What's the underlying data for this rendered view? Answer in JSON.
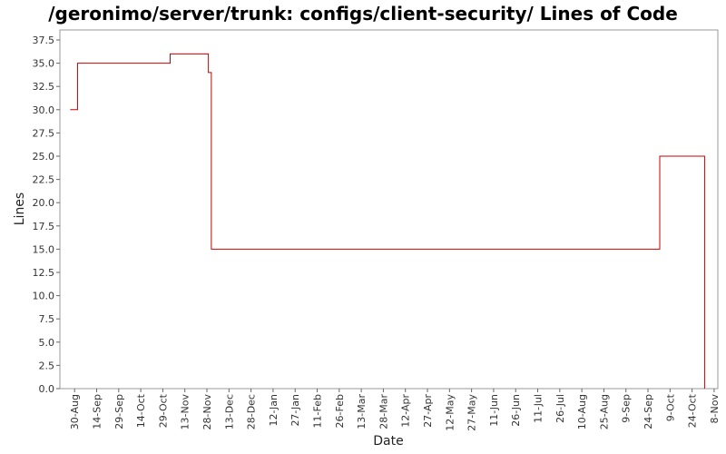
{
  "chart_data": {
    "type": "line",
    "title": "/geronimo/server/trunk: configs/client-security/ Lines of Code",
    "xlabel": "Date",
    "ylabel": "Lines",
    "ylim": [
      0,
      37.5
    ],
    "y_ticks": [
      "0.0",
      "2.5",
      "5.0",
      "7.5",
      "10.0",
      "12.5",
      "15.0",
      "17.5",
      "20.0",
      "22.5",
      "25.0",
      "27.5",
      "30.0",
      "32.5",
      "35.0",
      "37.5"
    ],
    "x_ticks": [
      "30-Aug",
      "14-Sep",
      "29-Sep",
      "14-Oct",
      "29-Oct",
      "13-Nov",
      "28-Nov",
      "13-Dec",
      "28-Dec",
      "12-Jan",
      "27-Jan",
      "11-Feb",
      "26-Feb",
      "13-Mar",
      "28-Mar",
      "12-Apr",
      "27-Apr",
      "12-May",
      "27-May",
      "11-Jun",
      "26-Jun",
      "11-Jul",
      "26-Jul",
      "10-Aug",
      "25-Aug",
      "9-Sep",
      "24-Sep",
      "9-Oct",
      "24-Oct",
      "8-Nov"
    ],
    "x_tick_day_offsets": [
      0,
      15,
      30,
      45,
      60,
      75,
      90,
      105,
      120,
      135,
      150,
      165,
      180,
      195,
      210,
      225,
      240,
      255,
      270,
      285,
      300,
      315,
      330,
      345,
      360,
      375,
      390,
      405,
      420,
      435
    ],
    "xlim_day_offsets": [
      -10,
      437.5
    ],
    "grid": false,
    "legend": "none",
    "series": [
      {
        "color": "#cc0000",
        "points": [
          {
            "d": -3,
            "y": 30
          },
          {
            "d": 2,
            "y": 35
          },
          {
            "d": 65,
            "y": 36
          },
          {
            "d": 91,
            "y": 34
          },
          {
            "d": 93,
            "y": 15
          },
          {
            "d": 398,
            "y": 25
          },
          {
            "d": 428.5,
            "y": 0
          }
        ]
      }
    ]
  }
}
